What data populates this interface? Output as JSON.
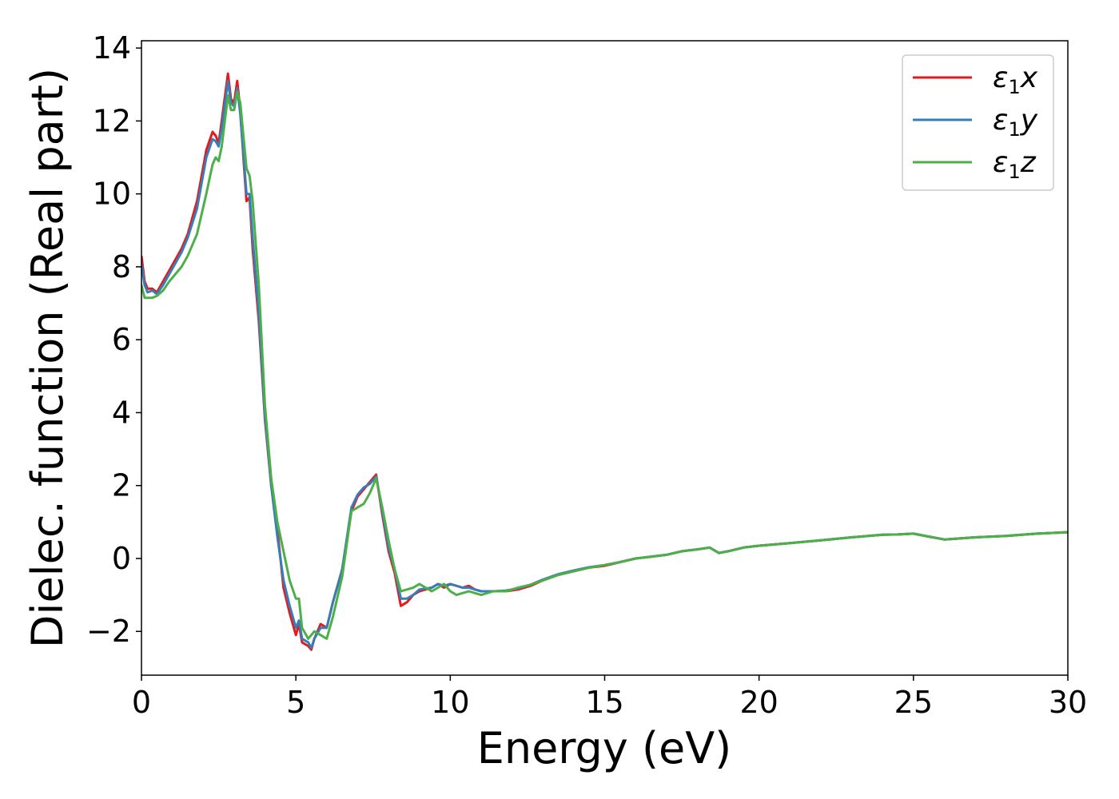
{
  "chart_data": {
    "type": "line",
    "xlabel": "Energy (eV)",
    "ylabel": "Dielec. function (Real part)",
    "xlim": [
      0,
      30
    ],
    "ylim": [
      -3.2,
      14.2
    ],
    "xticks": [
      0,
      5,
      10,
      15,
      20,
      25,
      30
    ],
    "yticks": [
      -2,
      0,
      2,
      4,
      6,
      8,
      10,
      12,
      14
    ],
    "grid": false,
    "legend_position": "top-right",
    "series": [
      {
        "name_main": "ε",
        "name_sub": "1",
        "name_var": "x",
        "color": "#e41a1c",
        "x": [
          0,
          0.1,
          0.2,
          0.35,
          0.5,
          0.7,
          0.9,
          1.1,
          1.3,
          1.5,
          1.8,
          2.1,
          2.3,
          2.4,
          2.5,
          2.6,
          2.8,
          2.9,
          3.0,
          3.1,
          3.2,
          3.3,
          3.4,
          3.5,
          3.6,
          3.8,
          4.0,
          4.2,
          4.4,
          4.6,
          4.8,
          5.0,
          5.1,
          5.2,
          5.4,
          5.5,
          5.6,
          5.8,
          6.0,
          6.2,
          6.5,
          6.8,
          7.0,
          7.2,
          7.4,
          7.6,
          7.8,
          8.0,
          8.2,
          8.4,
          8.6,
          8.8,
          9.0,
          9.4,
          9.6,
          9.8,
          10.0,
          10.2,
          10.4,
          10.6,
          10.8,
          11.0,
          11.4,
          11.8,
          12.2,
          12.6,
          13.0,
          13.5,
          14.0,
          14.5,
          15.0,
          15.5,
          16.0,
          16.5,
          17.0,
          17.5,
          18.0,
          18.4,
          18.7,
          19.0,
          19.5,
          20.0,
          21.0,
          22.0,
          23.0,
          24.0,
          24.5,
          25.0,
          25.5,
          26.0,
          26.5,
          27.0,
          28.0,
          29.0,
          30.0
        ],
        "y": [
          8.3,
          7.6,
          7.4,
          7.4,
          7.3,
          7.6,
          7.9,
          8.2,
          8.5,
          8.9,
          9.8,
          11.2,
          11.7,
          11.6,
          11.4,
          12.0,
          13.3,
          12.6,
          12.5,
          13.1,
          12.3,
          11.0,
          9.8,
          9.9,
          8.5,
          6.5,
          3.8,
          2.0,
          0.8,
          -0.8,
          -1.5,
          -2.1,
          -1.8,
          -2.3,
          -2.4,
          -2.5,
          -2.2,
          -1.8,
          -1.9,
          -1.2,
          -0.3,
          1.3,
          1.7,
          1.9,
          2.1,
          2.3,
          1.2,
          0.2,
          -0.4,
          -1.3,
          -1.2,
          -1.0,
          -0.9,
          -0.8,
          -0.7,
          -0.8,
          -0.7,
          -0.75,
          -0.8,
          -0.75,
          -0.85,
          -0.9,
          -0.9,
          -0.9,
          -0.85,
          -0.75,
          -0.6,
          -0.45,
          -0.35,
          -0.25,
          -0.2,
          -0.1,
          0.0,
          0.05,
          0.1,
          0.2,
          0.25,
          0.3,
          0.15,
          0.2,
          0.3,
          0.35,
          0.42,
          0.5,
          0.58,
          0.65,
          0.66,
          0.68,
          0.6,
          0.52,
          0.55,
          0.58,
          0.62,
          0.68,
          0.72
        ]
      },
      {
        "name_main": "ε",
        "name_sub": "1",
        "name_var": "y",
        "color": "#377eb8",
        "x": [
          0,
          0.1,
          0.2,
          0.35,
          0.5,
          0.7,
          0.9,
          1.1,
          1.3,
          1.5,
          1.8,
          2.1,
          2.3,
          2.4,
          2.5,
          2.6,
          2.8,
          2.9,
          3.0,
          3.1,
          3.2,
          3.3,
          3.4,
          3.5,
          3.6,
          3.8,
          4.0,
          4.2,
          4.4,
          4.6,
          4.8,
          5.0,
          5.1,
          5.2,
          5.4,
          5.5,
          5.6,
          5.8,
          6.0,
          6.2,
          6.5,
          6.8,
          7.0,
          7.2,
          7.4,
          7.6,
          7.8,
          8.0,
          8.2,
          8.4,
          8.6,
          8.8,
          9.0,
          9.4,
          9.6,
          9.8,
          10.0,
          10.2,
          10.4,
          10.6,
          10.8,
          11.0,
          11.4,
          11.8,
          12.2,
          12.6,
          13.0,
          13.5,
          14.0,
          14.5,
          15.0,
          15.5,
          16.0,
          16.5,
          17.0,
          17.5,
          18.0,
          18.4,
          18.7,
          19.0,
          19.5,
          20.0,
          21.0,
          22.0,
          23.0,
          24.0,
          24.5,
          25.0,
          25.5,
          26.0,
          26.5,
          27.0,
          28.0,
          29.0,
          30.0
        ],
        "y": [
          8.1,
          7.5,
          7.3,
          7.35,
          7.25,
          7.5,
          7.8,
          8.1,
          8.4,
          8.8,
          9.6,
          11.0,
          11.5,
          11.45,
          11.3,
          11.8,
          13.1,
          12.5,
          12.4,
          12.9,
          12.2,
          11.1,
          10.0,
          10.0,
          8.8,
          6.7,
          3.9,
          2.0,
          0.6,
          -0.6,
          -1.3,
          -1.9,
          -1.7,
          -2.2,
          -2.3,
          -2.45,
          -2.2,
          -1.9,
          -1.9,
          -1.2,
          -0.3,
          1.4,
          1.75,
          1.95,
          2.05,
          2.25,
          1.3,
          0.3,
          -0.3,
          -1.1,
          -1.1,
          -1.0,
          -0.85,
          -0.8,
          -0.7,
          -0.75,
          -0.7,
          -0.75,
          -0.8,
          -0.8,
          -0.85,
          -0.9,
          -0.9,
          -0.88,
          -0.82,
          -0.72,
          -0.58,
          -0.43,
          -0.33,
          -0.24,
          -0.18,
          -0.1,
          0.0,
          0.05,
          0.1,
          0.2,
          0.25,
          0.3,
          0.15,
          0.2,
          0.3,
          0.35,
          0.42,
          0.5,
          0.58,
          0.65,
          0.66,
          0.68,
          0.6,
          0.52,
          0.55,
          0.58,
          0.62,
          0.68,
          0.72
        ]
      },
      {
        "name_main": "ε",
        "name_sub": "1",
        "name_var": "z",
        "color": "#4daf4a",
        "x": [
          0,
          0.1,
          0.2,
          0.35,
          0.5,
          0.7,
          0.9,
          1.1,
          1.3,
          1.5,
          1.8,
          2.1,
          2.3,
          2.4,
          2.5,
          2.6,
          2.8,
          2.9,
          3.0,
          3.1,
          3.2,
          3.3,
          3.4,
          3.5,
          3.6,
          3.8,
          4.0,
          4.2,
          4.4,
          4.6,
          4.8,
          5.0,
          5.1,
          5.2,
          5.4,
          5.5,
          5.6,
          5.8,
          6.0,
          6.2,
          6.5,
          6.8,
          7.0,
          7.2,
          7.4,
          7.6,
          7.8,
          8.0,
          8.2,
          8.4,
          8.6,
          8.8,
          9.0,
          9.4,
          9.6,
          9.8,
          10.0,
          10.2,
          10.4,
          10.6,
          10.8,
          11.0,
          11.4,
          11.8,
          12.2,
          12.6,
          13.0,
          13.5,
          14.0,
          14.5,
          15.0,
          15.5,
          16.0,
          16.5,
          17.0,
          17.5,
          18.0,
          18.4,
          18.7,
          19.0,
          19.5,
          20.0,
          21.0,
          22.0,
          23.0,
          24.0,
          24.5,
          25.0,
          25.5,
          26.0,
          26.5,
          27.0,
          28.0,
          29.0,
          30.0
        ],
        "y": [
          7.5,
          7.15,
          7.15,
          7.15,
          7.2,
          7.35,
          7.6,
          7.8,
          8.0,
          8.3,
          8.9,
          10.0,
          10.8,
          11.0,
          10.9,
          11.3,
          12.7,
          12.3,
          12.3,
          12.8,
          12.5,
          11.6,
          10.7,
          10.5,
          9.8,
          7.5,
          4.2,
          2.2,
          1.0,
          0.2,
          -0.6,
          -1.1,
          -1.1,
          -1.9,
          -2.2,
          -2.1,
          -2.0,
          -2.1,
          -2.2,
          -1.6,
          -0.5,
          1.3,
          1.4,
          1.5,
          1.8,
          2.2,
          1.4,
          0.5,
          -0.3,
          -0.9,
          -0.85,
          -0.8,
          -0.7,
          -0.9,
          -0.8,
          -0.7,
          -0.9,
          -1.0,
          -0.95,
          -0.9,
          -0.95,
          -1.0,
          -0.9,
          -0.9,
          -0.8,
          -0.72,
          -0.6,
          -0.45,
          -0.35,
          -0.25,
          -0.18,
          -0.1,
          0.0,
          0.05,
          0.1,
          0.2,
          0.25,
          0.3,
          0.15,
          0.2,
          0.3,
          0.35,
          0.42,
          0.5,
          0.58,
          0.65,
          0.66,
          0.68,
          0.6,
          0.52,
          0.55,
          0.58,
          0.62,
          0.68,
          0.72
        ]
      }
    ]
  }
}
